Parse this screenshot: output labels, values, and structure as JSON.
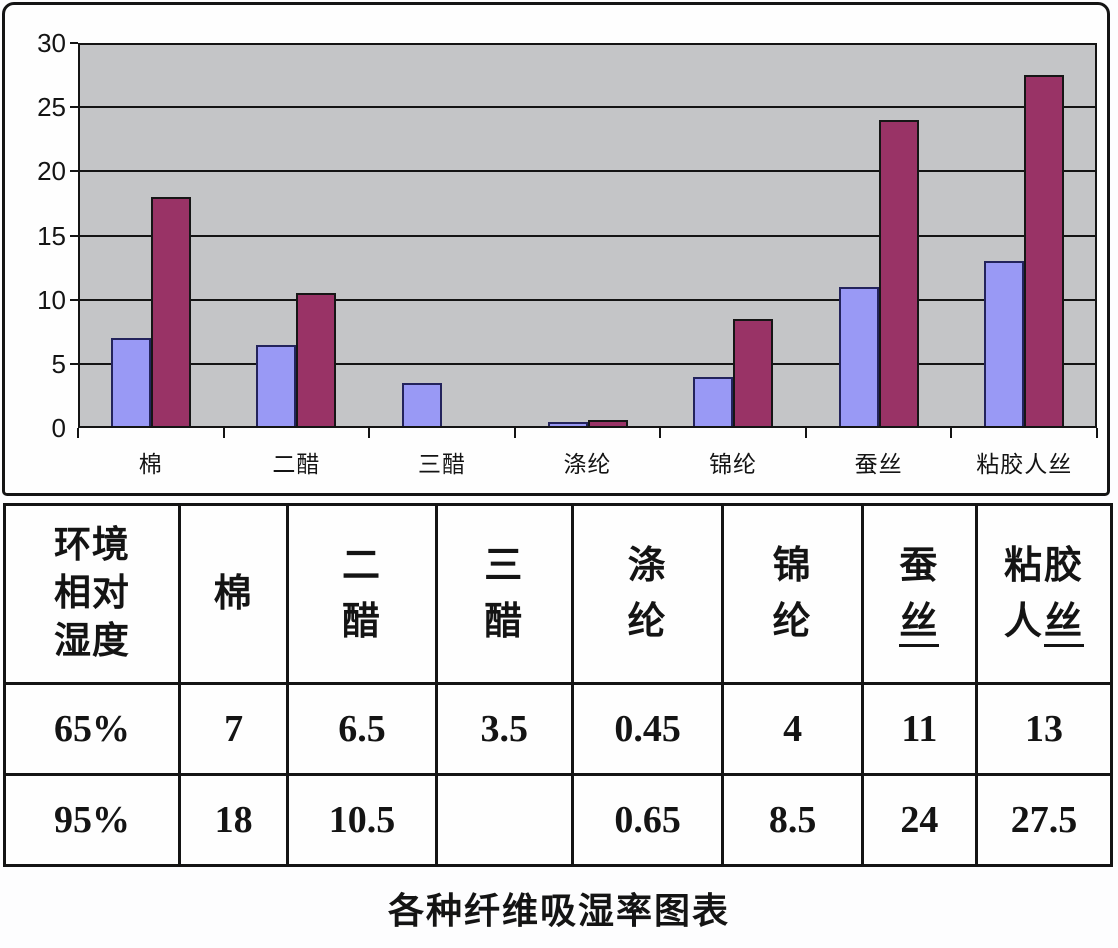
{
  "page": {
    "caption": "各种纤维吸湿率图表"
  },
  "chart_data": {
    "type": "bar",
    "title": "",
    "xlabel": "",
    "ylabel": "",
    "categories": [
      "棉",
      "二醋",
      "三醋",
      "涤纶",
      "锦纶",
      "蚕丝",
      "粘胶人丝"
    ],
    "series": [
      {
        "name": "环境相对湿度 65%",
        "color": "#9999f5",
        "values": [
          7,
          6.5,
          3.5,
          0.45,
          4,
          11,
          13
        ]
      },
      {
        "name": "环境相对湿度 95%",
        "color": "#993366",
        "values": [
          18,
          10.5,
          null,
          0.65,
          8.5,
          24,
          27.5
        ]
      }
    ],
    "ylim": [
      0,
      30
    ],
    "y_ticks": [
      0,
      5,
      10,
      15,
      20,
      25,
      30
    ],
    "grid": true,
    "legend_position": "none",
    "plot_background": "#c4c5c7",
    "gridline_color": "#141414"
  },
  "table": {
    "header": [
      {
        "lines": [
          "环境",
          "相对",
          "湿度"
        ],
        "underline_last": false
      },
      {
        "lines": [
          "棉"
        ],
        "underline_last": false
      },
      {
        "lines": [
          "二",
          "醋"
        ],
        "underline_last": false
      },
      {
        "lines": [
          "三",
          "醋"
        ],
        "underline_last": false
      },
      {
        "lines": [
          "涤",
          "纶"
        ],
        "underline_last": false
      },
      {
        "lines": [
          "锦",
          "纶"
        ],
        "underline_last": false
      },
      {
        "lines": [
          "蚕",
          "丝"
        ],
        "underline_last": true
      },
      {
        "lines": [
          "粘胶",
          "人丝"
        ],
        "underline_last": true
      }
    ],
    "rows": [
      {
        "label": "65%",
        "values": [
          "7",
          "6.5",
          "3.5",
          "0.45",
          "4",
          "11",
          "13"
        ]
      },
      {
        "label": "95%",
        "values": [
          "18",
          "10.5",
          "",
          "0.65",
          "8.5",
          "24",
          "27.5"
        ]
      }
    ]
  }
}
